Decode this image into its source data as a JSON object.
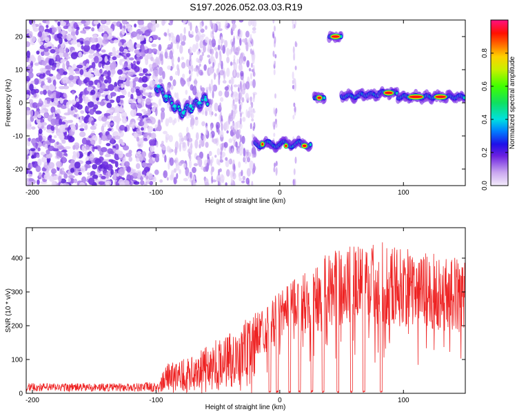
{
  "title": "S197.2026.052.03.03.R19",
  "chart_data": [
    {
      "type": "heatmap",
      "xlabel": "Height of straight line (km)",
      "ylabel": "Frequency (Hz)",
      "xlim": [
        -205,
        150
      ],
      "ylim": [
        -25,
        25
      ],
      "xticks": [
        -200,
        -100,
        0,
        100
      ],
      "yticks": [
        -20,
        -10,
        0,
        10,
        20
      ],
      "colorbar": {
        "label": "Normalized spectral amplitude",
        "range": [
          0,
          1
        ],
        "ticks": [
          0.0,
          0.2,
          0.4,
          0.6,
          0.8
        ]
      },
      "ridge": [
        {
          "x": -100,
          "freq": 5
        },
        {
          "x": -90,
          "freq": 1
        },
        {
          "x": -80,
          "freq": -3
        },
        {
          "x": -70,
          "freq": -1
        },
        {
          "x": -60,
          "freq": 1
        },
        {
          "x": -20,
          "freq": -12
        },
        {
          "x": 10,
          "freq": -13
        },
        {
          "x": 25,
          "freq": -13
        },
        {
          "x": 32,
          "freq": 2
        },
        {
          "x": 45,
          "freq": 20
        },
        {
          "x": 60,
          "freq": 2
        },
        {
          "x": 85,
          "freq": 3
        },
        {
          "x": 110,
          "freq": 2
        },
        {
          "x": 150,
          "freq": 2
        }
      ]
    },
    {
      "type": "line",
      "xlabel": "Height of straight line (km)",
      "ylabel": "SNR (10 * v/v)",
      "xlim": [
        -205,
        150
      ],
      "ylim": [
        0,
        490
      ],
      "xticks": [
        -200,
        -100,
        0,
        100
      ],
      "yticks": [
        0,
        100,
        200,
        300,
        400
      ],
      "series": [
        {
          "name": "SNR",
          "color": "#ee2222",
          "envelope": [
            {
              "x": -205,
              "y": 25
            },
            {
              "x": -120,
              "y": 25
            },
            {
              "x": -100,
              "y": 30
            },
            {
              "x": -90,
              "y": 90
            },
            {
              "x": -70,
              "y": 110
            },
            {
              "x": -40,
              "y": 190
            },
            {
              "x": -20,
              "y": 240
            },
            {
              "x": 0,
              "y": 300
            },
            {
              "x": 20,
              "y": 360
            },
            {
              "x": 40,
              "y": 420
            },
            {
              "x": 60,
              "y": 440
            },
            {
              "x": 85,
              "y": 450
            },
            {
              "x": 110,
              "y": 420
            },
            {
              "x": 150,
              "y": 400
            }
          ],
          "dropouts_x": [
            -8,
            -2,
            8,
            16,
            26,
            35,
            47,
            58,
            68,
            82
          ]
        }
      ]
    }
  ]
}
